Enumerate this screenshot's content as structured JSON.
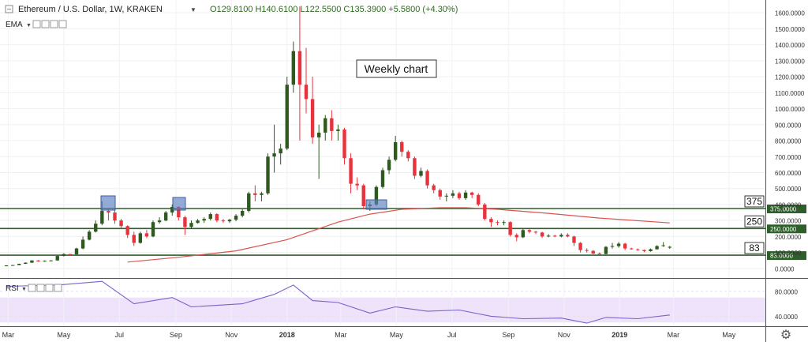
{
  "legend": {
    "symbol": "Ethereum / U.S. Dollar, 1W, KRAKEN",
    "ohlc": "O129.8100  H140.6100  L122.5500  C135.3900  +5.5800 (+4.30%)"
  },
  "indicators": {
    "ema_label": "EMA",
    "rsi_label": "RSI"
  },
  "annotation": "Weekly chart",
  "colors": {
    "up": "#2f5a1f",
    "down": "#e8323c",
    "ema": "#d9534f",
    "hline": "#2e5f2a",
    "rsi_line": "#7b61c8",
    "rsi_band": "#efe3fb",
    "box": "#5b7fbf"
  },
  "chart_data": [
    {
      "type": "candlestick",
      "title": "Ethereum / U.S. Dollar, 1W, KRAKEN",
      "scale": "linear",
      "ylim": [
        -60,
        1680
      ],
      "y_ticks": [
        "0.0000",
        "100.0000",
        "200.0000",
        "300.0000",
        "400.0000",
        "500.0000",
        "600.0000",
        "700.0000",
        "800.0000",
        "900.0000",
        "1000.0000",
        "1100.0000",
        "1200.0000",
        "1300.0000",
        "1400.0000",
        "1500.0000",
        "1600.0000"
      ],
      "x_ticks": [
        "Mar",
        "May",
        "Jul",
        "Sep",
        "Nov",
        "2018",
        "Mar",
        "May",
        "Jul",
        "Sep",
        "Nov",
        "2019",
        "Mar",
        "May"
      ],
      "x_start": "2017-02-20",
      "x_end": "2019-06-10",
      "horizontal_levels": [
        {
          "value": 375,
          "label": "375",
          "price_tag": "375.0000"
        },
        {
          "value": 250,
          "label": "250",
          "price_tag": "250.0000"
        },
        {
          "value": 83,
          "label": "83",
          "price_tag": "83.0000"
        }
      ],
      "ema": {
        "x": [
          "2017-07-10",
          "2017-09-04",
          "2017-11-06",
          "2018-01-01",
          "2018-02-26",
          "2018-04-02",
          "2018-05-07",
          "2018-06-18",
          "2018-07-16",
          "2018-08-20",
          "2018-10-15",
          "2018-12-10",
          "2019-02-25"
        ],
        "y": [
          40,
          70,
          110,
          180,
          290,
          340,
          370,
          380,
          380,
          370,
          345,
          315,
          285
        ]
      },
      "candles": [
        {
          "x": "2017-02-27",
          "o": 15,
          "h": 20,
          "l": 13,
          "c": 19
        },
        {
          "x": "2017-03-06",
          "o": 19,
          "h": 22,
          "l": 18,
          "c": 21
        },
        {
          "x": "2017-03-13",
          "o": 21,
          "h": 30,
          "l": 20,
          "c": 29
        },
        {
          "x": "2017-03-20",
          "o": 29,
          "h": 38,
          "l": 28,
          "c": 36
        },
        {
          "x": "2017-03-27",
          "o": 36,
          "h": 51,
          "l": 35,
          "c": 50
        },
        {
          "x": "2017-04-03",
          "o": 50,
          "h": 52,
          "l": 42,
          "c": 44
        },
        {
          "x": "2017-04-10",
          "o": 44,
          "h": 50,
          "l": 42,
          "c": 48
        },
        {
          "x": "2017-04-17",
          "o": 48,
          "h": 52,
          "l": 45,
          "c": 50
        },
        {
          "x": "2017-04-24",
          "o": 50,
          "h": 80,
          "l": 48,
          "c": 78
        },
        {
          "x": "2017-05-01",
          "o": 78,
          "h": 95,
          "l": 75,
          "c": 90
        },
        {
          "x": "2017-05-08",
          "o": 90,
          "h": 92,
          "l": 80,
          "c": 88
        },
        {
          "x": "2017-05-15",
          "o": 88,
          "h": 130,
          "l": 86,
          "c": 125
        },
        {
          "x": "2017-05-22",
          "o": 125,
          "h": 200,
          "l": 120,
          "c": 180
        },
        {
          "x": "2017-05-29",
          "o": 180,
          "h": 240,
          "l": 175,
          "c": 230
        },
        {
          "x": "2017-06-05",
          "o": 230,
          "h": 300,
          "l": 225,
          "c": 280
        },
        {
          "x": "2017-06-12",
          "o": 280,
          "h": 420,
          "l": 270,
          "c": 360
        },
        {
          "x": "2017-06-19",
          "o": 360,
          "h": 380,
          "l": 300,
          "c": 350
        },
        {
          "x": "2017-06-26",
          "o": 350,
          "h": 370,
          "l": 280,
          "c": 300
        },
        {
          "x": "2017-07-03",
          "o": 300,
          "h": 310,
          "l": 250,
          "c": 265
        },
        {
          "x": "2017-07-10",
          "o": 265,
          "h": 270,
          "l": 190,
          "c": 210
        },
        {
          "x": "2017-07-17",
          "o": 210,
          "h": 230,
          "l": 140,
          "c": 160
        },
        {
          "x": "2017-07-24",
          "o": 160,
          "h": 230,
          "l": 155,
          "c": 220
        },
        {
          "x": "2017-07-31",
          "o": 220,
          "h": 240,
          "l": 190,
          "c": 200
        },
        {
          "x": "2017-08-07",
          "o": 200,
          "h": 300,
          "l": 195,
          "c": 290
        },
        {
          "x": "2017-08-14",
          "o": 290,
          "h": 320,
          "l": 280,
          "c": 300
        },
        {
          "x": "2017-08-21",
          "o": 300,
          "h": 360,
          "l": 295,
          "c": 350
        },
        {
          "x": "2017-08-28",
          "o": 350,
          "h": 400,
          "l": 330,
          "c": 385
        },
        {
          "x": "2017-09-04",
          "o": 385,
          "h": 390,
          "l": 300,
          "c": 320
        },
        {
          "x": "2017-09-11",
          "o": 320,
          "h": 330,
          "l": 210,
          "c": 260
        },
        {
          "x": "2017-09-18",
          "o": 260,
          "h": 300,
          "l": 250,
          "c": 285
        },
        {
          "x": "2017-09-25",
          "o": 285,
          "h": 310,
          "l": 280,
          "c": 300
        },
        {
          "x": "2017-10-02",
          "o": 300,
          "h": 320,
          "l": 285,
          "c": 310
        },
        {
          "x": "2017-10-09",
          "o": 310,
          "h": 350,
          "l": 300,
          "c": 340
        },
        {
          "x": "2017-10-16",
          "o": 340,
          "h": 345,
          "l": 290,
          "c": 300
        },
        {
          "x": "2017-10-23",
          "o": 300,
          "h": 310,
          "l": 285,
          "c": 295
        },
        {
          "x": "2017-10-30",
          "o": 295,
          "h": 310,
          "l": 285,
          "c": 305
        },
        {
          "x": "2017-11-06",
          "o": 305,
          "h": 340,
          "l": 295,
          "c": 330
        },
        {
          "x": "2017-11-13",
          "o": 330,
          "h": 370,
          "l": 320,
          "c": 360
        },
        {
          "x": "2017-11-20",
          "o": 360,
          "h": 480,
          "l": 350,
          "c": 470
        },
        {
          "x": "2017-11-27",
          "o": 470,
          "h": 520,
          "l": 420,
          "c": 460
        },
        {
          "x": "2017-12-04",
          "o": 460,
          "h": 480,
          "l": 420,
          "c": 470
        },
        {
          "x": "2017-12-11",
          "o": 470,
          "h": 720,
          "l": 460,
          "c": 700
        },
        {
          "x": "2017-12-18",
          "o": 700,
          "h": 900,
          "l": 600,
          "c": 720
        },
        {
          "x": "2017-12-25",
          "o": 720,
          "h": 780,
          "l": 650,
          "c": 750
        },
        {
          "x": "2018-01-01",
          "o": 750,
          "h": 1200,
          "l": 740,
          "c": 1150
        },
        {
          "x": "2018-01-08",
          "o": 1150,
          "h": 1420,
          "l": 1100,
          "c": 1360
        },
        {
          "x": "2018-01-15",
          "o": 1360,
          "h": 1640,
          "l": 800,
          "c": 1150
        },
        {
          "x": "2018-01-22",
          "o": 1150,
          "h": 1380,
          "l": 970,
          "c": 1060
        },
        {
          "x": "2018-01-29",
          "o": 1060,
          "h": 1200,
          "l": 780,
          "c": 820
        },
        {
          "x": "2018-02-05",
          "o": 820,
          "h": 900,
          "l": 560,
          "c": 850
        },
        {
          "x": "2018-02-12",
          "o": 850,
          "h": 960,
          "l": 800,
          "c": 940
        },
        {
          "x": "2018-02-19",
          "o": 940,
          "h": 990,
          "l": 800,
          "c": 860
        },
        {
          "x": "2018-02-26",
          "o": 860,
          "h": 900,
          "l": 800,
          "c": 870
        },
        {
          "x": "2018-03-05",
          "o": 870,
          "h": 880,
          "l": 650,
          "c": 690
        },
        {
          "x": "2018-03-12",
          "o": 690,
          "h": 720,
          "l": 470,
          "c": 530
        },
        {
          "x": "2018-03-19",
          "o": 530,
          "h": 570,
          "l": 490,
          "c": 520
        },
        {
          "x": "2018-03-26",
          "o": 520,
          "h": 530,
          "l": 370,
          "c": 390
        },
        {
          "x": "2018-04-02",
          "o": 390,
          "h": 420,
          "l": 360,
          "c": 400
        },
        {
          "x": "2018-04-09",
          "o": 400,
          "h": 520,
          "l": 390,
          "c": 510
        },
        {
          "x": "2018-04-16",
          "o": 510,
          "h": 630,
          "l": 500,
          "c": 615
        },
        {
          "x": "2018-04-23",
          "o": 615,
          "h": 700,
          "l": 590,
          "c": 680
        },
        {
          "x": "2018-04-30",
          "o": 680,
          "h": 830,
          "l": 670,
          "c": 790
        },
        {
          "x": "2018-05-07",
          "o": 790,
          "h": 800,
          "l": 700,
          "c": 730
        },
        {
          "x": "2018-05-14",
          "o": 730,
          "h": 740,
          "l": 670,
          "c": 690
        },
        {
          "x": "2018-05-21",
          "o": 690,
          "h": 700,
          "l": 560,
          "c": 580
        },
        {
          "x": "2018-05-28",
          "o": 580,
          "h": 630,
          "l": 570,
          "c": 610
        },
        {
          "x": "2018-06-04",
          "o": 610,
          "h": 620,
          "l": 500,
          "c": 520
        },
        {
          "x": "2018-06-11",
          "o": 520,
          "h": 530,
          "l": 470,
          "c": 490
        },
        {
          "x": "2018-06-18",
          "o": 490,
          "h": 500,
          "l": 430,
          "c": 450
        },
        {
          "x": "2018-06-25",
          "o": 450,
          "h": 470,
          "l": 420,
          "c": 455
        },
        {
          "x": "2018-07-02",
          "o": 455,
          "h": 490,
          "l": 440,
          "c": 470
        },
        {
          "x": "2018-07-09",
          "o": 470,
          "h": 480,
          "l": 430,
          "c": 440
        },
        {
          "x": "2018-07-16",
          "o": 440,
          "h": 490,
          "l": 430,
          "c": 475
        },
        {
          "x": "2018-07-23",
          "o": 475,
          "h": 480,
          "l": 440,
          "c": 460
        },
        {
          "x": "2018-07-30",
          "o": 460,
          "h": 470,
          "l": 390,
          "c": 400
        },
        {
          "x": "2018-08-06",
          "o": 400,
          "h": 410,
          "l": 300,
          "c": 310
        },
        {
          "x": "2018-08-13",
          "o": 310,
          "h": 320,
          "l": 260,
          "c": 290
        },
        {
          "x": "2018-08-20",
          "o": 290,
          "h": 300,
          "l": 270,
          "c": 285
        },
        {
          "x": "2018-08-27",
          "o": 285,
          "h": 300,
          "l": 270,
          "c": 290
        },
        {
          "x": "2018-09-03",
          "o": 290,
          "h": 295,
          "l": 200,
          "c": 210
        },
        {
          "x": "2018-09-10",
          "o": 210,
          "h": 220,
          "l": 170,
          "c": 195
        },
        {
          "x": "2018-09-17",
          "o": 195,
          "h": 250,
          "l": 190,
          "c": 240
        },
        {
          "x": "2018-09-24",
          "o": 240,
          "h": 245,
          "l": 220,
          "c": 230
        },
        {
          "x": "2018-10-01",
          "o": 230,
          "h": 235,
          "l": 215,
          "c": 225
        },
        {
          "x": "2018-10-08",
          "o": 225,
          "h": 230,
          "l": 190,
          "c": 200
        },
        {
          "x": "2018-10-15",
          "o": 200,
          "h": 215,
          "l": 195,
          "c": 205
        },
        {
          "x": "2018-10-22",
          "o": 205,
          "h": 210,
          "l": 195,
          "c": 200
        },
        {
          "x": "2018-10-29",
          "o": 200,
          "h": 220,
          "l": 195,
          "c": 210
        },
        {
          "x": "2018-11-05",
          "o": 210,
          "h": 220,
          "l": 195,
          "c": 200
        },
        {
          "x": "2018-11-12",
          "o": 200,
          "h": 205,
          "l": 140,
          "c": 160
        },
        {
          "x": "2018-11-19",
          "o": 160,
          "h": 165,
          "l": 100,
          "c": 115
        },
        {
          "x": "2018-11-26",
          "o": 115,
          "h": 125,
          "l": 100,
          "c": 110
        },
        {
          "x": "2018-12-03",
          "o": 110,
          "h": 115,
          "l": 90,
          "c": 93
        },
        {
          "x": "2018-12-10",
          "o": 93,
          "h": 100,
          "l": 84,
          "c": 90
        },
        {
          "x": "2018-12-17",
          "o": 90,
          "h": 140,
          "l": 88,
          "c": 135
        },
        {
          "x": "2018-12-24",
          "o": 135,
          "h": 160,
          "l": 125,
          "c": 140
        },
        {
          "x": "2018-12-31",
          "o": 140,
          "h": 165,
          "l": 130,
          "c": 155
        },
        {
          "x": "2019-01-07",
          "o": 155,
          "h": 160,
          "l": 115,
          "c": 125
        },
        {
          "x": "2019-01-14",
          "o": 125,
          "h": 130,
          "l": 118,
          "c": 120
        },
        {
          "x": "2019-01-21",
          "o": 120,
          "h": 125,
          "l": 110,
          "c": 115
        },
        {
          "x": "2019-01-28",
          "o": 115,
          "h": 118,
          "l": 102,
          "c": 108
        },
        {
          "x": "2019-02-04",
          "o": 108,
          "h": 125,
          "l": 105,
          "c": 120
        },
        {
          "x": "2019-02-11",
          "o": 120,
          "h": 145,
          "l": 118,
          "c": 140
        },
        {
          "x": "2019-02-18",
          "o": 140,
          "h": 165,
          "l": 135,
          "c": 145
        },
        {
          "x": "2019-02-25",
          "o": 129.81,
          "h": 140.61,
          "l": 122.55,
          "c": 135.39
        }
      ]
    },
    {
      "type": "line",
      "title": "RSI",
      "ylim": [
        24,
        100
      ],
      "y_ticks": [
        "40.0000",
        "80.0000"
      ],
      "band": [
        30,
        70
      ],
      "x": [
        "2017-02-27",
        "2017-04-24",
        "2017-06-12",
        "2017-07-17",
        "2017-08-28",
        "2017-09-18",
        "2017-11-13",
        "2017-12-18",
        "2018-01-08",
        "2018-01-29",
        "2018-02-26",
        "2018-04-02",
        "2018-04-30",
        "2018-06-04",
        "2018-07-09",
        "2018-08-13",
        "2018-09-17",
        "2018-10-29",
        "2018-11-26",
        "2018-12-17",
        "2019-01-21",
        "2019-02-25"
      ],
      "y": [
        88,
        90,
        96,
        60,
        70,
        55,
        60,
        75,
        90,
        65,
        62,
        45,
        55,
        48,
        50,
        40,
        36,
        37,
        29,
        38,
        36,
        42
      ]
    }
  ]
}
